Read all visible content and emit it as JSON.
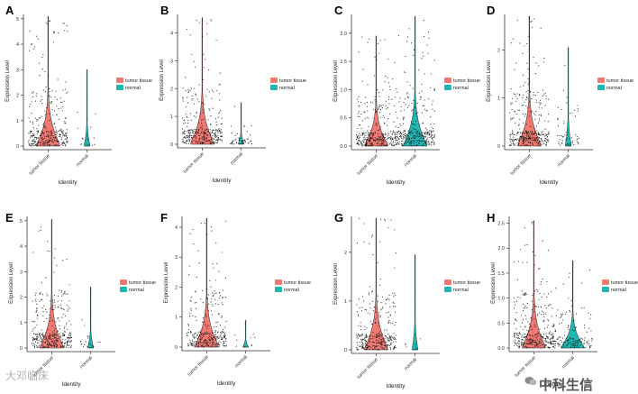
{
  "figure": {
    "colors": {
      "tumor": "#F07A72",
      "normal": "#1FB6B3",
      "point": "#111111",
      "axis": "#333333"
    },
    "watermark_left": "大邓临床",
    "watermark_right": "中科生信",
    "watermark_icon": "wechat-icon"
  },
  "chart_data": [
    {
      "panel": "A",
      "type": "violin",
      "xlabel": "Identity",
      "ylabel": "Expression Level",
      "categories": [
        "tumor tissue",
        "normal"
      ],
      "legend": [
        "tumor tissue",
        "normal"
      ],
      "legend_position": "right",
      "ylim": [
        0,
        5.1
      ],
      "yticks": [
        0,
        1,
        2,
        3,
        4,
        5
      ],
      "max": [
        5.1,
        3.0
      ],
      "median": [
        0.05,
        0.0
      ],
      "n_points": [
        320,
        14
      ]
    },
    {
      "panel": "B",
      "type": "violin",
      "xlabel": "Identity",
      "ylabel": "Expression Level",
      "categories": [
        "tumor tissue",
        "normal"
      ],
      "legend": [
        "tumor tissue",
        "normal"
      ],
      "legend_position": "right",
      "ylim": [
        0,
        4.6
      ],
      "yticks": [
        0,
        1,
        2,
        3,
        4
      ],
      "max": [
        4.55,
        1.5
      ],
      "median": [
        0.05,
        0.02
      ],
      "n_points": [
        320,
        45
      ]
    },
    {
      "panel": "C",
      "type": "violin",
      "xlabel": "Identity",
      "ylabel": "Expression Level",
      "categories": [
        "tumor tissue",
        "normal"
      ],
      "legend": [
        "tumor tissue",
        "normal"
      ],
      "legend_position": "right",
      "ylim": [
        0,
        2.3
      ],
      "yticks": [
        0,
        0.5,
        1.0,
        1.5,
        2.0
      ],
      "ytick_labels": [
        "0.0",
        "0.5",
        "1.0",
        "1.5",
        "2.0"
      ],
      "max": [
        1.95,
        2.3
      ],
      "median": [
        0.1,
        0.1
      ],
      "n_points": [
        320,
        320
      ]
    },
    {
      "panel": "D",
      "type": "violin",
      "xlabel": "Identity",
      "ylabel": "Expression Level",
      "categories": [
        "tumor tissue",
        "normal"
      ],
      "legend": [
        "tumor tissue",
        "normal"
      ],
      "legend_position": "right",
      "ylim": [
        0,
        2.7
      ],
      "yticks": [
        0,
        1,
        2
      ],
      "max": [
        2.7,
        2.05
      ],
      "median": [
        0.15,
        0.02
      ],
      "n_points": [
        340,
        50
      ]
    },
    {
      "panel": "E",
      "type": "violin",
      "xlabel": "Identity",
      "ylabel": "Expression Level",
      "categories": [
        "tumor tissue",
        "normal"
      ],
      "legend": [
        "tumor tissue",
        "normal"
      ],
      "legend_position": "right",
      "ylim": [
        0,
        5.1
      ],
      "yticks": [
        0,
        1,
        2,
        3,
        4,
        5
      ],
      "max": [
        5.05,
        2.4
      ],
      "median": [
        0.1,
        0.02
      ],
      "n_points": [
        330,
        20
      ]
    },
    {
      "panel": "F",
      "type": "violin",
      "xlabel": "Identity",
      "ylabel": "Expression Level",
      "categories": [
        "tumor tissue",
        "normal"
      ],
      "legend": [
        "tumor tissue",
        "normal"
      ],
      "legend_position": "right",
      "ylim": [
        0,
        4.3
      ],
      "yticks": [
        0,
        1,
        2,
        3,
        4
      ],
      "max": [
        4.3,
        0.9
      ],
      "median": [
        0.05,
        0.0
      ],
      "n_points": [
        300,
        10
      ]
    },
    {
      "panel": "G",
      "type": "violin",
      "xlabel": "Identity",
      "ylabel": "Expression Level",
      "categories": [
        "tumor tissue",
        "normal"
      ],
      "legend": [
        "tumor tissue",
        "normal"
      ],
      "legend_position": "right",
      "ylim": [
        0,
        2.7
      ],
      "yticks": [
        0,
        1,
        2
      ],
      "max": [
        2.7,
        1.95
      ],
      "median": [
        0.08,
        0.0
      ],
      "n_points": [
        320,
        6
      ]
    },
    {
      "panel": "H",
      "type": "violin",
      "xlabel": "Identity",
      "ylabel": "Expression Level",
      "categories": [
        "tumor tissue",
        "normal"
      ],
      "legend": [
        "tumor tissue",
        "normal"
      ],
      "legend_position": "right",
      "ylim": [
        0,
        2.6
      ],
      "yticks": [
        0,
        0.5,
        1.0,
        1.5,
        2.0,
        2.5
      ],
      "ytick_labels": [
        "0.0",
        "0.5",
        "1.0",
        "1.5",
        "2.0",
        "2.5"
      ],
      "max": [
        2.55,
        1.75
      ],
      "median": [
        0.12,
        0.08
      ],
      "n_points": [
        340,
        150
      ]
    }
  ]
}
